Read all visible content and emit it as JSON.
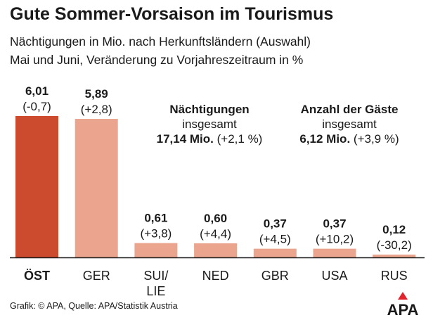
{
  "title": "Gute Sommer-Vorsaison im Tourismus",
  "subtitle_1": "Nächtigungen in Mio. nach Herkunftsländern (Auswahl)",
  "subtitle_2": "Mai und Juni, Veränderung zu Vorjahreszeitraum in %",
  "totals": {
    "nights": {
      "heading": "Nächtigungen",
      "sub": "insgesamt",
      "value": "17,14 Mio.",
      "change": "(+2,1 %)"
    },
    "guests": {
      "heading": "Anzahl der Gäste",
      "sub": "insgesamt",
      "value": "6,12 Mio.",
      "change": "(+3,9 %)"
    }
  },
  "source": "Grafik: © APA, Quelle: APA/Statistik Austria",
  "logo_text": "APA",
  "colors": {
    "highlight": "#cc4a2e",
    "bar": "#eba58e",
    "baseline": "#1a1a1a",
    "logo": "#e3222c"
  },
  "chart_data": {
    "type": "bar",
    "categories": [
      "ÖST",
      "GER",
      "SUI/\nLIE",
      "NED",
      "GBR",
      "USA",
      "RUS"
    ],
    "values": [
      6.01,
      5.89,
      0.61,
      0.6,
      0.37,
      0.37,
      0.12
    ],
    "value_labels": [
      "6,01",
      "5,89",
      "0,61",
      "0,60",
      "0,37",
      "0,37",
      "0,12"
    ],
    "change_labels": [
      "(-0,7)",
      "(+2,8)",
      "(+3,8)",
      "(+4,4)",
      "(+4,5)",
      "(+10,2)",
      "(-30,2)"
    ],
    "highlight_index": 0,
    "title": "Nächtigungen in Mio. nach Herkunftsländern (Auswahl)",
    "xlabel": "",
    "ylabel": "Mio.",
    "ylim": [
      0,
      6.01
    ]
  }
}
